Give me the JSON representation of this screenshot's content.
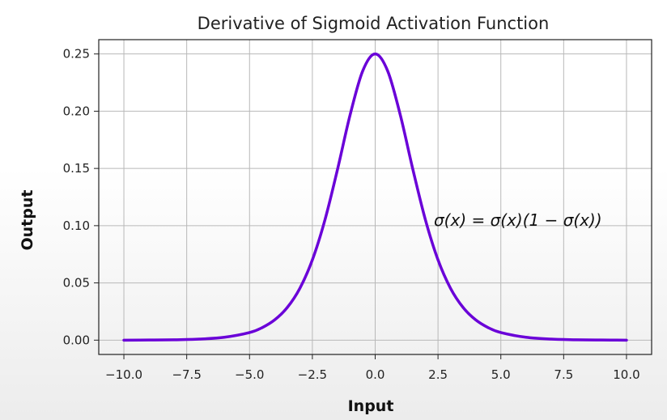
{
  "chart_data": {
    "type": "line",
    "title": "Derivative of Sigmoid Activation Function",
    "xlabel": "Input",
    "ylabel": "Output",
    "xlim": [
      -11.0,
      11.0
    ],
    "ylim": [
      -0.0125,
      0.2625
    ],
    "xticks": [
      -10.0,
      -7.5,
      -5.0,
      -2.5,
      0.0,
      2.5,
      5.0,
      7.5,
      10.0
    ],
    "xtick_labels": [
      "−10.0",
      "−7.5",
      "−5.0",
      "−2.5",
      "0.0",
      "2.5",
      "5.0",
      "7.5",
      "10.0"
    ],
    "yticks": [
      0.0,
      0.05,
      0.1,
      0.15,
      0.2,
      0.25
    ],
    "ytick_labels": [
      "0.00",
      "0.05",
      "0.10",
      "0.15",
      "0.20",
      "0.25"
    ],
    "grid": true,
    "annotation": "σ(x)  = σ(x)(1 − σ(x))",
    "series": [
      {
        "color": "#6a00d8",
        "x": [
          -10,
          -9,
          -8,
          -7,
          -6,
          -5,
          -4.5,
          -4,
          -3.5,
          -3,
          -2.5,
          -2,
          -1.5,
          -1,
          -0.5,
          0,
          0.5,
          1,
          1.5,
          2,
          2.5,
          3,
          3.5,
          4,
          4.5,
          5,
          6,
          7,
          8,
          9,
          10
        ],
        "y": [
          0.0,
          0.0001,
          0.0003,
          0.0009,
          0.0025,
          0.0066,
          0.0109,
          0.0177,
          0.0285,
          0.0452,
          0.0701,
          0.105,
          0.1491,
          0.1966,
          0.235,
          0.25,
          0.235,
          0.1966,
          0.1491,
          0.105,
          0.0701,
          0.0452,
          0.0285,
          0.0177,
          0.0109,
          0.0066,
          0.0025,
          0.0009,
          0.0003,
          0.0001,
          0.0
        ]
      }
    ]
  }
}
